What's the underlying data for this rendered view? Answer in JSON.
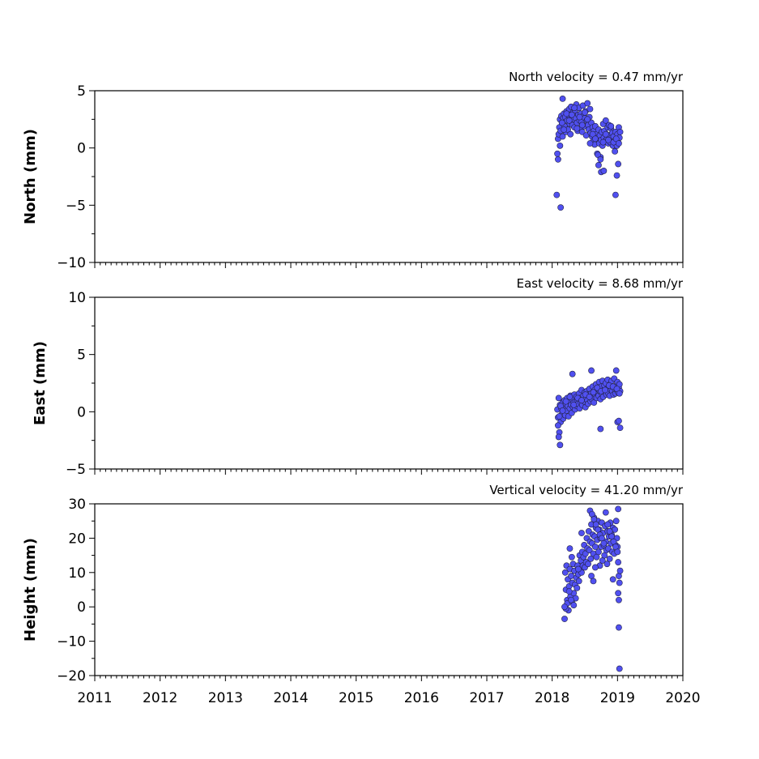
{
  "chart_data": [
    {
      "type": "scatter",
      "title": "North velocity = 0.47 mm/yr",
      "ylabel": "North (mm)",
      "xlim": [
        2011,
        2020
      ],
      "ylim": [
        -10,
        5
      ],
      "yticks": [
        -10,
        -5,
        0,
        5
      ],
      "ytick_labels": [
        "−10",
        "−5",
        "0",
        "5"
      ],
      "marker_color": "#5050f0",
      "x": [
        2018.08,
        2018.09,
        2018.1,
        2018.11,
        2018.12,
        2018.13,
        2018.14,
        2018.15,
        2018.16,
        2018.17,
        2018.18,
        2018.19,
        2018.2,
        2018.21,
        2018.22,
        2018.23,
        2018.24,
        2018.25,
        2018.26,
        2018.27,
        2018.28,
        2018.29,
        2018.3,
        2018.31,
        2018.32,
        2018.33,
        2018.34,
        2018.35,
        2018.36,
        2018.37,
        2018.38,
        2018.39,
        2018.4,
        2018.41,
        2018.42,
        2018.43,
        2018.44,
        2018.45,
        2018.46,
        2018.47,
        2018.48,
        2018.49,
        2018.5,
        2018.51,
        2018.52,
        2018.53,
        2018.54,
        2018.55,
        2018.56,
        2018.57,
        2018.58,
        2018.59,
        2018.6,
        2018.61,
        2018.62,
        2018.63,
        2018.64,
        2018.65,
        2018.66,
        2018.67,
        2018.68,
        2018.69,
        2018.7,
        2018.71,
        2018.72,
        2018.73,
        2018.74,
        2018.75,
        2018.76,
        2018.77,
        2018.78,
        2018.79,
        2018.8,
        2018.81,
        2018.82,
        2018.83,
        2018.84,
        2018.85,
        2018.86,
        2018.87,
        2018.88,
        2018.89,
        2018.9,
        2018.91,
        2018.92,
        2018.93,
        2018.94,
        2018.95,
        2018.96,
        2018.97,
        2018.98,
        2018.99,
        2019.0,
        2019.01,
        2019.02,
        2019.03,
        2019.04,
        2018.09,
        2018.12,
        2018.15,
        2018.18,
        2018.22,
        2018.26,
        2018.3,
        2018.34,
        2018.38,
        2018.42,
        2018.46,
        2018.5,
        2018.54,
        2018.58,
        2018.62,
        2018.66,
        2018.7,
        2018.74,
        2018.78,
        2018.82,
        2018.86,
        2018.9,
        2018.94,
        2018.98,
        2019.02,
        2018.07,
        2018.16,
        2018.13,
        2018.71,
        2018.75,
        2018.79,
        2018.97,
        2018.99,
        2019.01
      ],
      "y": [
        -0.5,
        0.8,
        1.2,
        1.8,
        2.5,
        1.5,
        2.8,
        2.2,
        1.0,
        2.6,
        3.0,
        1.9,
        2.7,
        1.4,
        3.2,
        2.4,
        1.6,
        2.9,
        3.4,
        2.1,
        1.2,
        3.6,
        2.8,
        2.0,
        3.1,
        2.5,
        1.8,
        3.3,
        2.6,
        3.8,
        2.2,
        1.5,
        2.9,
        3.5,
        2.4,
        1.7,
        3.0,
        2.3,
        1.4,
        3.7,
        2.8,
        1.9,
        2.6,
        3.2,
        1.1,
        2.4,
        3.9,
        2.0,
        1.6,
        2.7,
        3.4,
        1.3,
        2.2,
        1.0,
        1.8,
        0.6,
        1.5,
        0.3,
        1.9,
        0.8,
        1.2,
        -0.5,
        0.9,
        1.6,
        0.4,
        1.1,
        -0.8,
        0.7,
        1.4,
        0.2,
        2.1,
        0.9,
        1.5,
        0.6,
        2.4,
        1.2,
        0.8,
        1.8,
        0.4,
        2.0,
        1.1,
        0.5,
        1.7,
        0.9,
        1.3,
        0.2,
        1.0,
        0.6,
        -0.3,
        1.4,
        0.8,
        0.2,
        1.2,
        0.5,
        1.8,
        0.9,
        1.4,
        -1.0,
        0.2,
        2.2,
        1.6,
        3.0,
        2.4,
        2.9,
        3.5,
        1.7,
        2.7,
        2.0,
        3.1,
        2.5,
        0.4,
        1.2,
        0.8,
        -0.6,
        -1.0,
        0.5,
        1.2,
        0.7,
        1.9,
        0.5,
        0.8,
        0.4,
        -4.1,
        4.3,
        -5.2,
        -1.5,
        -2.1,
        -2.0,
        -4.1,
        -2.4,
        -1.4
      ]
    },
    {
      "type": "scatter",
      "title": "East velocity = 8.68 mm/yr",
      "ylabel": "East (mm)",
      "xlim": [
        2011,
        2020
      ],
      "ylim": [
        -5,
        10
      ],
      "yticks": [
        -5,
        0,
        5,
        10
      ],
      "ytick_labels": [
        "−5",
        "0",
        "5",
        "10"
      ],
      "marker_color": "#5050f0",
      "x": [
        2018.08,
        2018.09,
        2018.1,
        2018.11,
        2018.12,
        2018.13,
        2018.14,
        2018.15,
        2018.16,
        2018.17,
        2018.18,
        2018.19,
        2018.2,
        2018.21,
        2018.22,
        2018.23,
        2018.24,
        2018.25,
        2018.26,
        2018.27,
        2018.28,
        2018.29,
        2018.3,
        2018.31,
        2018.32,
        2018.33,
        2018.34,
        2018.35,
        2018.36,
        2018.37,
        2018.38,
        2018.39,
        2018.4,
        2018.41,
        2018.42,
        2018.43,
        2018.44,
        2018.45,
        2018.46,
        2018.47,
        2018.48,
        2018.49,
        2018.5,
        2018.51,
        2018.52,
        2018.53,
        2018.54,
        2018.55,
        2018.56,
        2018.57,
        2018.58,
        2018.59,
        2018.6,
        2018.61,
        2018.62,
        2018.63,
        2018.64,
        2018.65,
        2018.66,
        2018.67,
        2018.68,
        2018.69,
        2018.7,
        2018.71,
        2018.72,
        2018.73,
        2018.74,
        2018.75,
        2018.76,
        2018.77,
        2018.78,
        2018.79,
        2018.8,
        2018.81,
        2018.82,
        2018.83,
        2018.84,
        2018.85,
        2018.86,
        2018.87,
        2018.88,
        2018.89,
        2018.9,
        2018.91,
        2018.92,
        2018.93,
        2018.94,
        2018.95,
        2018.96,
        2018.97,
        2018.98,
        2018.99,
        2019.0,
        2019.01,
        2019.02,
        2019.03,
        2019.04,
        2018.09,
        2018.11,
        2018.13,
        2018.16,
        2018.21,
        2018.27,
        2018.33,
        2018.39,
        2018.45,
        2018.51,
        2018.57,
        2018.63,
        2018.69,
        2018.75,
        2018.81,
        2018.87,
        2018.93,
        2018.99,
        2019.03,
        2018.1,
        2018.12,
        2018.31,
        2018.6,
        2018.74,
        2018.98,
        2019.0,
        2019.02,
        2019.04
      ],
      "y": [
        0.2,
        -0.5,
        1.2,
        -1.8,
        0.6,
        -0.9,
        0.3,
        -0.2,
        0.8,
        -0.6,
        0.4,
        1.0,
        -0.3,
        0.7,
        0.1,
        1.2,
        0.5,
        -0.4,
        0.9,
        0.3,
        1.4,
        0.6,
        -0.1,
        1.1,
        0.4,
        0.8,
        1.5,
        0.2,
        0.9,
        1.3,
        0.5,
        1.0,
        0.7,
        1.6,
        0.3,
        1.2,
        0.8,
        1.9,
        0.6,
        1.1,
        1.4,
        0.9,
        1.7,
        0.4,
        1.2,
        1.8,
        1.0,
        0.7,
        1.5,
        2.0,
        1.3,
        0.9,
        1.6,
        1.1,
        2.2,
        1.4,
        0.8,
        1.9,
        1.5,
        2.4,
        1.2,
        1.7,
        2.0,
        1.4,
        2.6,
        1.8,
        1.1,
        2.2,
        1.6,
        2.7,
        1.3,
        1.9,
        2.3,
        1.7,
        2.5,
        1.5,
        2.0,
        2.8,
        1.6,
        2.1,
        1.4,
        2.4,
        1.9,
        2.7,
        1.8,
        2.2,
        1.5,
        2.9,
        2.0,
        1.6,
        2.3,
        1.9,
        2.6,
        1.7,
        2.1,
        2.4,
        1.8,
        -1.2,
        -0.4,
        0.5,
        0.1,
        0.9,
        1.3,
        0.6,
        1.2,
        1.0,
        1.5,
        1.3,
        1.7,
        2.1,
        1.8,
        1.9,
        2.3,
        2.2,
        2.0,
        1.6,
        -2.2,
        -2.9,
        3.3,
        3.6,
        -1.5,
        3.6,
        -0.9,
        -0.8,
        -1.4
      ]
    },
    {
      "type": "scatter",
      "title": "Vertical velocity = 41.20 mm/yr",
      "ylabel": "Height (mm)",
      "xlim": [
        2011,
        2020
      ],
      "ylim": [
        -20,
        30
      ],
      "yticks": [
        -20,
        -10,
        0,
        10,
        20,
        30
      ],
      "ytick_labels": [
        "−20",
        "−10",
        "0",
        "10",
        "20",
        "30"
      ],
      "xticks": [
        2011,
        2012,
        2013,
        2014,
        2015,
        2016,
        2017,
        2018,
        2019,
        2020
      ],
      "xtick_labels": [
        "2011",
        "2012",
        "2013",
        "2014",
        "2015",
        "2016",
        "2017",
        "2018",
        "2019",
        "2020"
      ],
      "marker_color": "#5050f0",
      "x": [
        2018.19,
        2018.2,
        2018.21,
        2018.22,
        2018.23,
        2018.24,
        2018.25,
        2018.26,
        2018.27,
        2018.28,
        2018.29,
        2018.3,
        2018.31,
        2018.32,
        2018.33,
        2018.34,
        2018.35,
        2018.36,
        2018.37,
        2018.38,
        2018.39,
        2018.4,
        2018.41,
        2018.42,
        2018.43,
        2018.44,
        2018.45,
        2018.46,
        2018.47,
        2018.48,
        2018.49,
        2018.5,
        2018.51,
        2018.52,
        2018.53,
        2018.54,
        2018.55,
        2018.56,
        2018.57,
        2018.58,
        2018.59,
        2018.6,
        2018.61,
        2018.62,
        2018.63,
        2018.64,
        2018.65,
        2018.66,
        2018.67,
        2018.68,
        2018.69,
        2018.7,
        2018.71,
        2018.72,
        2018.73,
        2018.74,
        2018.75,
        2018.76,
        2018.77,
        2018.78,
        2018.79,
        2018.8,
        2018.81,
        2018.82,
        2018.83,
        2018.84,
        2018.85,
        2018.86,
        2018.87,
        2018.88,
        2018.89,
        2018.9,
        2018.91,
        2018.92,
        2018.93,
        2018.94,
        2018.95,
        2018.96,
        2018.97,
        2018.98,
        2018.99,
        2019.0,
        2019.01,
        2019.02,
        2019.03,
        2019.04,
        2018.21,
        2018.23,
        2018.26,
        2018.29,
        2018.33,
        2018.58,
        2018.61,
        2018.64,
        2018.67,
        2018.7,
        2018.73,
        2018.76,
        2018.79,
        2018.82,
        2018.85,
        2018.88,
        2018.91,
        2018.94,
        2018.97,
        2019.0,
        2018.19,
        2018.27,
        2018.3,
        2018.4,
        2018.45,
        2018.6,
        2018.63,
        2018.66,
        2018.93,
        2019.01,
        2019.02,
        2019.03,
        2019.02,
        2019.01
      ],
      "y": [
        -3.5,
        10.0,
        5.0,
        12.0,
        2.0,
        8.0,
        -1.0,
        6.0,
        11.0,
        3.0,
        9.0,
        1.5,
        7.0,
        12.5,
        4.0,
        10.5,
        6.5,
        2.5,
        8.5,
        5.5,
        12.0,
        9.5,
        7.5,
        15.0,
        11.0,
        13.5,
        10.0,
        16.0,
        12.0,
        14.5,
        18.0,
        11.5,
        15.5,
        13.0,
        20.0,
        17.0,
        12.5,
        22.0,
        16.5,
        19.0,
        14.0,
        24.0,
        18.5,
        21.0,
        15.5,
        26.0,
        20.5,
        17.5,
        23.0,
        14.5,
        19.5,
        25.0,
        16.0,
        22.5,
        12.0,
        20.0,
        17.5,
        24.5,
        13.5,
        21.5,
        18.0,
        15.0,
        23.5,
        19.0,
        16.5,
        12.5,
        22.0,
        17.0,
        20.5,
        14.0,
        24.5,
        18.5,
        21.0,
        16.0,
        23.0,
        19.5,
        15.5,
        22.5,
        18.0,
        25.0,
        20.0,
        17.5,
        13.0,
        9.0,
        7.0,
        10.5,
        -0.5,
        1.0,
        4.5,
        2.0,
        0.5,
        28.0,
        27.0,
        25.5,
        24.0,
        22.5,
        21.0,
        20.0,
        18.5,
        27.5,
        24.0,
        22.0,
        20.5,
        19.0,
        17.5,
        16.0,
        0.0,
        17.0,
        14.5,
        11.0,
        21.5,
        9.0,
        7.5,
        11.5,
        8.0,
        4.0,
        -6.0,
        -18.0,
        2.0,
        28.5
      ]
    }
  ]
}
